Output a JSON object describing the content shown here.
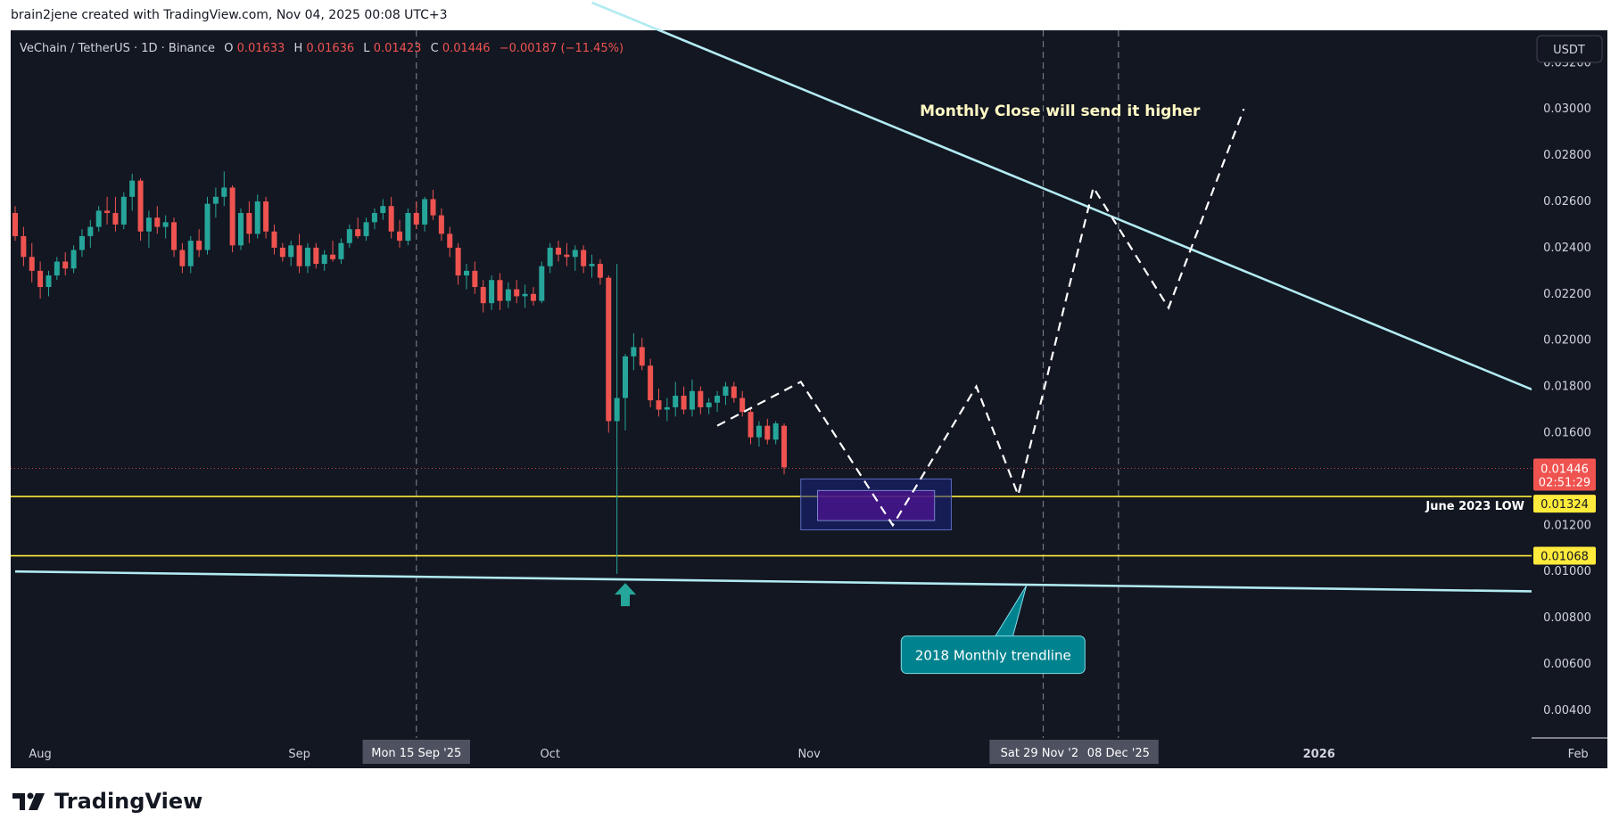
{
  "header": {
    "credit": "brain2jene created with TradingView.com, Nov 04, 2025 00:08 UTC+3"
  },
  "brand": {
    "name": "TradingView"
  },
  "colors": {
    "background": "#131722",
    "up": "#26a69a",
    "down": "#ef5350",
    "trendline": "#b2ebf2",
    "support": "#ffeb3b",
    "callout": "#00838f",
    "zone": "#311b92"
  },
  "chart_data": {
    "type": "candlestick",
    "symbol_line": {
      "name": "VeChain / TetherUS · 1D · Binance",
      "o_label": "O",
      "o": "0.01633",
      "h_label": "H",
      "h": "0.01636",
      "l_label": "L",
      "l": "0.01423",
      "c_label": "C",
      "c": "0.01446",
      "change": "−0.00187 (−11.45%)"
    },
    "currency_badge": "USDT",
    "y_ticks": [
      "0.03200",
      "0.03000",
      "0.02800",
      "0.02600",
      "0.02400",
      "0.02200",
      "0.02000",
      "0.01800",
      "0.01600",
      "0.01400",
      "0.01200",
      "0.01000",
      "0.00800",
      "0.00600",
      "0.00400"
    ],
    "ylim": [
      0.0028,
      0.0334
    ],
    "x_ticks": [
      {
        "label": "Aug",
        "date": "2025-08-01"
      },
      {
        "label": "Sep",
        "date": "2025-09-01"
      },
      {
        "label": "Oct",
        "date": "2025-10-01"
      },
      {
        "label": "Nov",
        "date": "2025-11-01"
      },
      {
        "label": "2026",
        "date": "2026-01-01"
      },
      {
        "label": "Feb",
        "date": "2026-02-01"
      }
    ],
    "x_highlights": [
      {
        "label": "Mon 15 Sep '25",
        "date": "2025-09-15"
      },
      {
        "label": "Sat 29 Nov '25",
        "date": "2025-11-29"
      },
      {
        "label": "08 Dec '25",
        "date": "2025-12-08"
      }
    ],
    "price_label": {
      "value": "0.01446",
      "countdown": "02:51:29",
      "price": 0.01446
    },
    "levels": [
      {
        "value": 0.01324,
        "label": "0.01324",
        "text": "June 2023 LOW"
      },
      {
        "value": 0.01068,
        "label": "0.01068",
        "text": ""
      }
    ],
    "candles_start": "2025-07-29",
    "candles": [
      [
        0.0255,
        0.0258,
        0.0243,
        0.0245
      ],
      [
        0.0245,
        0.0249,
        0.0232,
        0.0236
      ],
      [
        0.0236,
        0.0242,
        0.0225,
        0.023
      ],
      [
        0.023,
        0.0234,
        0.0218,
        0.0223
      ],
      [
        0.0223,
        0.023,
        0.0219,
        0.0228
      ],
      [
        0.0228,
        0.0236,
        0.0226,
        0.0234
      ],
      [
        0.0234,
        0.0238,
        0.0228,
        0.0231
      ],
      [
        0.0231,
        0.0241,
        0.0229,
        0.0239
      ],
      [
        0.0239,
        0.0248,
        0.0236,
        0.0245
      ],
      [
        0.0245,
        0.0252,
        0.024,
        0.0249
      ],
      [
        0.0249,
        0.0258,
        0.0247,
        0.0256
      ],
      [
        0.0256,
        0.0262,
        0.025,
        0.0255
      ],
      [
        0.0255,
        0.0262,
        0.0247,
        0.025
      ],
      [
        0.025,
        0.0264,
        0.0248,
        0.0262
      ],
      [
        0.0262,
        0.0272,
        0.0256,
        0.0269
      ],
      [
        0.0269,
        0.027,
        0.0243,
        0.0247
      ],
      [
        0.0247,
        0.0256,
        0.024,
        0.0253
      ],
      [
        0.0253,
        0.0258,
        0.0246,
        0.0249
      ],
      [
        0.0249,
        0.0254,
        0.0244,
        0.0251
      ],
      [
        0.0251,
        0.0253,
        0.0236,
        0.0239
      ],
      [
        0.0239,
        0.0242,
        0.0229,
        0.0232
      ],
      [
        0.0232,
        0.0245,
        0.0229,
        0.0243
      ],
      [
        0.0243,
        0.0248,
        0.0236,
        0.0239
      ],
      [
        0.0239,
        0.0262,
        0.0237,
        0.0259
      ],
      [
        0.0259,
        0.0266,
        0.0253,
        0.0262
      ],
      [
        0.0262,
        0.0273,
        0.0258,
        0.0266
      ],
      [
        0.0266,
        0.0267,
        0.0238,
        0.0241
      ],
      [
        0.0241,
        0.0257,
        0.0239,
        0.0255
      ],
      [
        0.0255,
        0.026,
        0.0242,
        0.0246
      ],
      [
        0.0246,
        0.0263,
        0.0244,
        0.026
      ],
      [
        0.026,
        0.0262,
        0.0244,
        0.0247
      ],
      [
        0.0247,
        0.025,
        0.0237,
        0.024
      ],
      [
        0.024,
        0.0242,
        0.0234,
        0.0236
      ],
      [
        0.0236,
        0.0243,
        0.0232,
        0.0241
      ],
      [
        0.0241,
        0.0246,
        0.0229,
        0.0232
      ],
      [
        0.0232,
        0.0242,
        0.0229,
        0.024
      ],
      [
        0.024,
        0.0242,
        0.0231,
        0.0233
      ],
      [
        0.0233,
        0.0239,
        0.023,
        0.0237
      ],
      [
        0.0237,
        0.0243,
        0.0234,
        0.0235
      ],
      [
        0.0235,
        0.0244,
        0.0233,
        0.0242
      ],
      [
        0.0242,
        0.025,
        0.024,
        0.0248
      ],
      [
        0.0248,
        0.0253,
        0.0244,
        0.0245
      ],
      [
        0.0245,
        0.0253,
        0.0243,
        0.0251
      ],
      [
        0.0251,
        0.0257,
        0.0248,
        0.0255
      ],
      [
        0.0255,
        0.0261,
        0.0252,
        0.0258
      ],
      [
        0.0258,
        0.0262,
        0.0244,
        0.0247
      ],
      [
        0.0247,
        0.0252,
        0.024,
        0.0243
      ],
      [
        0.0243,
        0.0257,
        0.0241,
        0.0255
      ],
      [
        0.0255,
        0.026,
        0.0248,
        0.025
      ],
      [
        0.025,
        0.0262,
        0.0247,
        0.0261
      ],
      [
        0.0261,
        0.0265,
        0.0252,
        0.0254
      ],
      [
        0.0254,
        0.0257,
        0.0243,
        0.0246
      ],
      [
        0.0246,
        0.0249,
        0.0236,
        0.024
      ],
      [
        0.024,
        0.0242,
        0.0224,
        0.0228
      ],
      [
        0.0228,
        0.0233,
        0.0222,
        0.023
      ],
      [
        0.023,
        0.0234,
        0.022,
        0.0223
      ],
      [
        0.0223,
        0.0226,
        0.0212,
        0.0216
      ],
      [
        0.0216,
        0.0228,
        0.0213,
        0.0226
      ],
      [
        0.0226,
        0.0229,
        0.0213,
        0.0217
      ],
      [
        0.0217,
        0.0225,
        0.0214,
        0.0222
      ],
      [
        0.0222,
        0.0226,
        0.0216,
        0.0219
      ],
      [
        0.0219,
        0.0224,
        0.0214,
        0.022
      ],
      [
        0.022,
        0.0223,
        0.0215,
        0.0217
      ],
      [
        0.0217,
        0.0234,
        0.0216,
        0.0232
      ],
      [
        0.0232,
        0.0242,
        0.0229,
        0.024
      ],
      [
        0.024,
        0.0243,
        0.0234,
        0.0237
      ],
      [
        0.0237,
        0.0242,
        0.0232,
        0.0236
      ],
      [
        0.0236,
        0.0241,
        0.023,
        0.0239
      ],
      [
        0.0239,
        0.0241,
        0.0229,
        0.0232
      ],
      [
        0.0232,
        0.0237,
        0.0227,
        0.0233
      ],
      [
        0.0233,
        0.0235,
        0.0224,
        0.0227
      ],
      [
        0.0227,
        0.0228,
        0.016,
        0.0165
      ],
      [
        0.0165,
        0.0233,
        0.0099,
        0.0175
      ],
      [
        0.0175,
        0.0194,
        0.0161,
        0.0193
      ],
      [
        0.0193,
        0.0203,
        0.0187,
        0.0197
      ],
      [
        0.0197,
        0.0201,
        0.0187,
        0.0189
      ],
      [
        0.0189,
        0.0192,
        0.0171,
        0.0174
      ],
      [
        0.0174,
        0.0179,
        0.0167,
        0.017
      ],
      [
        0.017,
        0.0175,
        0.0165,
        0.0171
      ],
      [
        0.0171,
        0.0182,
        0.0167,
        0.0176
      ],
      [
        0.0176,
        0.018,
        0.0168,
        0.017
      ],
      [
        0.017,
        0.0183,
        0.0167,
        0.0178
      ],
      [
        0.0178,
        0.018,
        0.0168,
        0.0171
      ],
      [
        0.0171,
        0.0175,
        0.0168,
        0.0173
      ],
      [
        0.0173,
        0.0178,
        0.0169,
        0.0176
      ],
      [
        0.0176,
        0.0182,
        0.0172,
        0.018
      ],
      [
        0.018,
        0.0182,
        0.0173,
        0.0175
      ],
      [
        0.0175,
        0.0178,
        0.0167,
        0.0169
      ],
      [
        0.0169,
        0.0171,
        0.0155,
        0.0158
      ],
      [
        0.0158,
        0.0165,
        0.0154,
        0.0163
      ],
      [
        0.0163,
        0.0166,
        0.0155,
        0.0157
      ],
      [
        0.0157,
        0.0165,
        0.0155,
        0.0164
      ],
      [
        0.0163,
        0.0164,
        0.0142,
        0.0145
      ]
    ],
    "trendlines": [
      {
        "name": "upper",
        "points": [
          [
            "2025-10-06",
            0.0346
          ],
          [
            "2026-02-04",
            0.0166
          ]
        ]
      },
      {
        "name": "lower",
        "points": [
          [
            "2025-07-29",
            0.01
          ],
          [
            "2026-02-04",
            0.0091
          ]
        ]
      }
    ],
    "projection_path": [
      [
        "2025-10-21",
        0.0163
      ],
      [
        "2025-10-31",
        0.0182
      ],
      [
        "2025-11-11",
        0.012
      ],
      [
        "2025-11-21",
        0.018
      ],
      [
        "2025-11-26",
        0.0133
      ],
      [
        "2025-12-05",
        0.0266
      ],
      [
        "2025-12-14",
        0.0214
      ],
      [
        "2025-12-23",
        0.03
      ]
    ],
    "zone": {
      "from": "2025-10-31",
      "to": "2025-11-18",
      "low": 0.0118,
      "high": 0.014
    },
    "zone_inner": {
      "from": "2025-11-02",
      "to": "2025-11-16",
      "low": 0.0122,
      "high": 0.0135
    },
    "annotations": [
      {
        "text": "Monthly Close will send it higher",
        "date": "2025-12-01",
        "price": 0.0297
      },
      {
        "text": "2018 Monthly trendline",
        "date": "2025-11-23",
        "price": 0.0064,
        "pointer_date": "2025-11-27",
        "pointer_price": 0.0094
      }
    ],
    "arrow_marker": {
      "date": "2025-10-10",
      "price": 0.009
    }
  }
}
